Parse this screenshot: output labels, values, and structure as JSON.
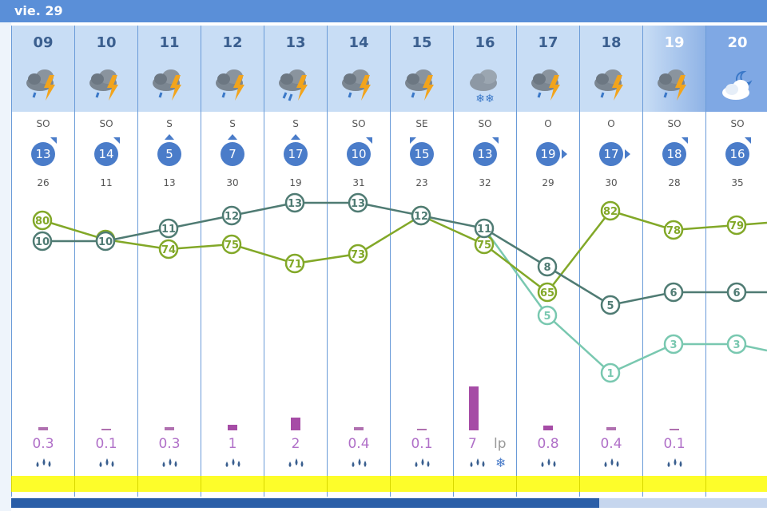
{
  "day_label": "vie. 29",
  "colors": {
    "temp": "#4f7b73",
    "humidity": "#82a828",
    "dewpoint": "#79c8b0",
    "header": "#5a8fd8",
    "precip": "#a64ca6"
  },
  "columns": [
    {
      "hour": "09",
      "icon": "storm-rain-icon",
      "dir": "SO",
      "wind": "13",
      "gust": "26",
      "precip": "0.3",
      "precip_level": 0.2,
      "arrow": "ne"
    },
    {
      "hour": "10",
      "icon": "storm-rain-icon",
      "dir": "SO",
      "wind": "14",
      "gust": "11",
      "precip": "0.1",
      "precip_level": 0.1,
      "arrow": "ne"
    },
    {
      "hour": "11",
      "icon": "storm-rain-icon",
      "dir": "S",
      "wind": "5",
      "gust": "13",
      "precip": "0.3",
      "precip_level": 0.2,
      "arrow": "n"
    },
    {
      "hour": "12",
      "icon": "storm-rain-icon",
      "dir": "S",
      "wind": "7",
      "gust": "30",
      "precip": "1",
      "precip_level": 0.35,
      "arrow": "n"
    },
    {
      "hour": "13",
      "icon": "storm-heavy-rain-icon",
      "dir": "S",
      "wind": "17",
      "gust": "19",
      "precip": "2",
      "precip_level": 0.75,
      "arrow": "n"
    },
    {
      "hour": "14",
      "icon": "storm-rain-icon",
      "dir": "SO",
      "wind": "10",
      "gust": "31",
      "precip": "0.4",
      "precip_level": 0.2,
      "arrow": "ne"
    },
    {
      "hour": "15",
      "icon": "storm-rain-icon",
      "dir": "SE",
      "wind": "15",
      "gust": "23",
      "precip": "0.1",
      "precip_level": 0.1,
      "arrow": "nw"
    },
    {
      "hour": "16",
      "icon": "cloud-snow-icon",
      "dir": "SO",
      "wind": "13",
      "gust": "32",
      "precip": "7",
      "precip_extra": "lp",
      "precip_level": 2.6,
      "arrow": "ne",
      "snow": true
    },
    {
      "hour": "17",
      "icon": "storm-rain-icon",
      "dir": "O",
      "wind": "19",
      "gust": "29",
      "precip": "0.8",
      "precip_level": 0.3,
      "arrow": "e"
    },
    {
      "hour": "18",
      "icon": "storm-rain-icon",
      "dir": "O",
      "wind": "17",
      "gust": "30",
      "precip": "0.4",
      "precip_level": 0.2,
      "arrow": "e"
    },
    {
      "hour": "19",
      "icon": "storm-rain-icon",
      "dir": "SO",
      "wind": "18",
      "gust": "28",
      "precip": "0.1",
      "precip_level": 0.1,
      "arrow": "ne"
    },
    {
      "hour": "20",
      "icon": "moon-cloud-icon",
      "dir": "SO",
      "wind": "16",
      "gust": "35",
      "precip": "",
      "precip_level": 0,
      "arrow": "ne"
    }
  ],
  "series": {
    "temperature": [
      "10",
      "10",
      "11",
      "12",
      "13",
      "13",
      "12",
      "11",
      "8",
      "5",
      "6",
      "6"
    ],
    "humidity": [
      "80",
      "76",
      "74",
      "75",
      "71",
      "73",
      "81",
      "75",
      "65",
      "82",
      "78",
      "79"
    ],
    "dewpoint": [
      "",
      "",
      "",
      "",
      "",
      "",
      "",
      "",
      "5",
      "1",
      "3",
      "3"
    ]
  },
  "series_values": {
    "temperature": [
      10,
      10,
      11,
      12,
      13,
      13,
      12,
      11,
      8,
      5,
      6,
      6
    ],
    "humidity": [
      80,
      76,
      74,
      75,
      71,
      73,
      81,
      75,
      65,
      82,
      78,
      79
    ],
    "dewpoint": [
      null,
      null,
      null,
      null,
      null,
      null,
      null,
      11,
      5,
      1,
      3,
      3
    ]
  }
}
